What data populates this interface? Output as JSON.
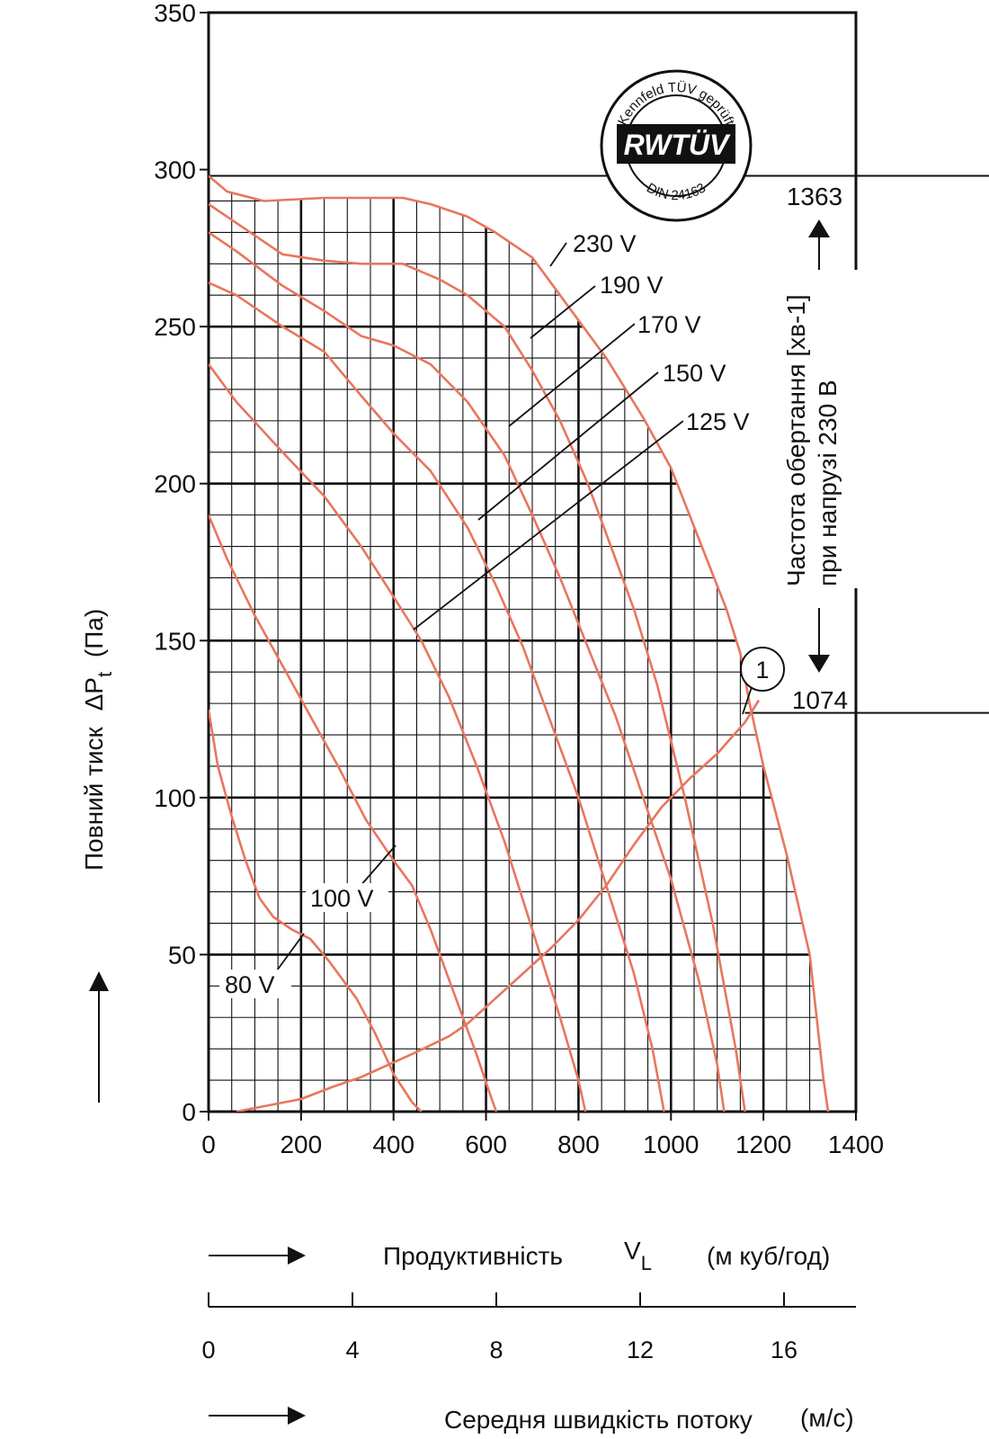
{
  "chart_data": {
    "type": "line",
    "title": "",
    "xlabel": "Продуктивність",
    "xsymbol": "V",
    "xsymbol_sub": "L",
    "xunit": "(м куб/год)",
    "ylabel": "Повний тиск",
    "ysymbol": "ΔP",
    "ysymbol_sub": "t",
    "yunit": "(Па)",
    "xlim": [
      0,
      1400
    ],
    "ylim": [
      0,
      350
    ],
    "x_ticks": [
      "0",
      "200",
      "400",
      "600",
      "800",
      "1000",
      "1200",
      "1400"
    ],
    "y_ticks": [
      "0",
      "50",
      "100",
      "150",
      "200",
      "250",
      "300",
      "350"
    ],
    "series": [
      {
        "name": "230 V",
        "points": [
          [
            0,
            298
          ],
          [
            40,
            293
          ],
          [
            120,
            290
          ],
          [
            250,
            291
          ],
          [
            420,
            291
          ],
          [
            480,
            289
          ],
          [
            560,
            285
          ],
          [
            620,
            280
          ],
          [
            700,
            272
          ],
          [
            760,
            260
          ],
          [
            860,
            240
          ],
          [
            940,
            221
          ],
          [
            1000,
            205
          ],
          [
            1040,
            190
          ],
          [
            1080,
            175
          ],
          [
            1120,
            160
          ],
          [
            1150,
            146
          ],
          [
            1170,
            130
          ],
          [
            1200,
            110
          ],
          [
            1250,
            82
          ],
          [
            1300,
            50
          ],
          [
            1330,
            10
          ],
          [
            1340,
            0
          ]
        ]
      },
      {
        "name": "190 V",
        "points": [
          [
            0,
            289
          ],
          [
            60,
            283
          ],
          [
            160,
            273
          ],
          [
            250,
            271
          ],
          [
            330,
            270
          ],
          [
            420,
            270
          ],
          [
            500,
            265
          ],
          [
            560,
            260
          ],
          [
            640,
            250
          ],
          [
            700,
            236
          ],
          [
            760,
            220
          ],
          [
            820,
            200
          ],
          [
            880,
            176
          ],
          [
            920,
            160
          ],
          [
            970,
            136
          ],
          [
            1030,
            100
          ],
          [
            1090,
            60
          ],
          [
            1140,
            20
          ],
          [
            1160,
            0
          ]
        ]
      },
      {
        "name": "170 V",
        "points": [
          [
            0,
            280
          ],
          [
            60,
            274
          ],
          [
            160,
            263
          ],
          [
            250,
            255
          ],
          [
            330,
            247
          ],
          [
            400,
            244
          ],
          [
            480,
            238
          ],
          [
            560,
            226
          ],
          [
            640,
            209
          ],
          [
            700,
            190
          ],
          [
            760,
            170
          ],
          [
            820,
            148
          ],
          [
            880,
            126
          ],
          [
            940,
            100
          ],
          [
            1000,
            74
          ],
          [
            1060,
            42
          ],
          [
            1100,
            15
          ],
          [
            1115,
            0
          ]
        ]
      },
      {
        "name": "150 V",
        "points": [
          [
            0,
            264
          ],
          [
            60,
            260
          ],
          [
            160,
            250
          ],
          [
            250,
            242
          ],
          [
            330,
            228
          ],
          [
            400,
            216
          ],
          [
            480,
            204
          ],
          [
            560,
            186
          ],
          [
            620,
            168
          ],
          [
            680,
            148
          ],
          [
            740,
            124
          ],
          [
            800,
            100
          ],
          [
            860,
            72
          ],
          [
            920,
            44
          ],
          [
            960,
            20
          ],
          [
            985,
            0
          ]
        ]
      },
      {
        "name": "125 V",
        "points": [
          [
            0,
            238
          ],
          [
            60,
            226
          ],
          [
            160,
            210
          ],
          [
            250,
            196
          ],
          [
            330,
            180
          ],
          [
            400,
            164
          ],
          [
            460,
            150
          ],
          [
            520,
            132
          ],
          [
            580,
            110
          ],
          [
            640,
            86
          ],
          [
            700,
            58
          ],
          [
            760,
            30
          ],
          [
            800,
            10
          ],
          [
            815,
            0
          ]
        ]
      },
      {
        "name": "100 V",
        "points": [
          [
            0,
            190
          ],
          [
            40,
            176
          ],
          [
            100,
            158
          ],
          [
            160,
            142
          ],
          [
            220,
            126
          ],
          [
            280,
            110
          ],
          [
            340,
            93
          ],
          [
            400,
            80
          ],
          [
            440,
            72
          ],
          [
            480,
            58
          ],
          [
            530,
            38
          ],
          [
            580,
            18
          ],
          [
            610,
            5
          ],
          [
            622,
            0
          ]
        ]
      },
      {
        "name": "80 V",
        "points": [
          [
            0,
            128
          ],
          [
            20,
            110
          ],
          [
            50,
            94
          ],
          [
            80,
            80
          ],
          [
            110,
            68
          ],
          [
            140,
            62
          ],
          [
            180,
            58
          ],
          [
            220,
            55
          ],
          [
            260,
            48
          ],
          [
            320,
            36
          ],
          [
            360,
            25
          ],
          [
            400,
            12
          ],
          [
            440,
            3
          ],
          [
            460,
            0
          ]
        ]
      },
      {
        "name": "1",
        "points": [
          [
            60,
            0
          ],
          [
            130,
            2
          ],
          [
            200,
            4
          ],
          [
            270,
            8
          ],
          [
            330,
            11
          ],
          [
            390,
            15
          ],
          [
            450,
            19
          ],
          [
            520,
            24
          ],
          [
            560,
            28
          ],
          [
            620,
            36
          ],
          [
            680,
            44
          ],
          [
            740,
            52
          ],
          [
            800,
            61
          ],
          [
            860,
            72
          ],
          [
            920,
            85
          ],
          [
            980,
            97
          ],
          [
            1040,
            106
          ],
          [
            1100,
            114
          ],
          [
            1160,
            124
          ],
          [
            1190,
            131
          ]
        ]
      }
    ],
    "curve_labels": [
      "230 V",
      "190 V",
      "170 V",
      "150 V",
      "125 V",
      "100 V",
      "80 V"
    ],
    "operating_point_label": "1",
    "rpm_label": "Частота обертання [хв-1]",
    "rpm_sublabel": "при напрузі 230 В",
    "rpm_max": "1363",
    "rpm_min": "1074",
    "rpm_max_pressure": 298,
    "rpm_min_pressure": 127,
    "speed_axis_title": "Середня швидкість потоку",
    "speed_axis_unit": "(м/с)",
    "speed_ticks": [
      "0",
      "4",
      "8",
      "12",
      "16"
    ],
    "speed_range": [
      0,
      18
    ],
    "grid": true,
    "colors": {
      "curve": "#e8765e",
      "grid": "#111111",
      "axis": "#111111"
    }
  },
  "logo": {
    "ring_text_top": "Kennfeld TÜV geprüft",
    "center_text": "RWTÜV",
    "ring_text_bottom": "DIN 24163"
  }
}
